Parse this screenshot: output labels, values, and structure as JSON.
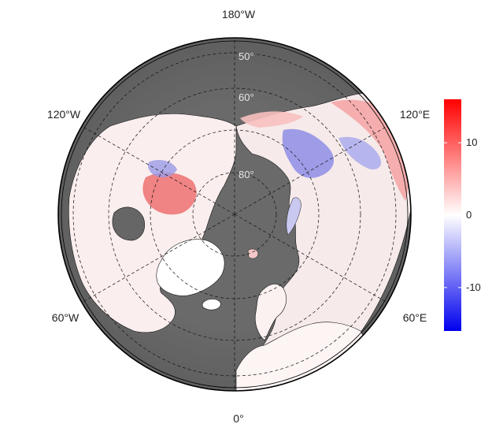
{
  "map": {
    "projection": "north polar stereographic",
    "longitude_labels": {
      "top": "180°W",
      "bottom": "0°",
      "upper_left": "120°W",
      "upper_right": "120°E",
      "lower_left": "60°W",
      "lower_right": "60°E"
    },
    "latitude_labels": [
      "50°",
      "60°",
      "80°"
    ],
    "land_color": "#666666",
    "graticule": "dashed"
  },
  "colorbar": {
    "min": -16,
    "max": 16,
    "ticks": [
      "10",
      "0",
      "-10"
    ],
    "tick_values": [
      10,
      0,
      -10
    ],
    "colors": {
      "low": "#0000ee",
      "mid": "#ffffff",
      "high": "#ff0000"
    }
  }
}
